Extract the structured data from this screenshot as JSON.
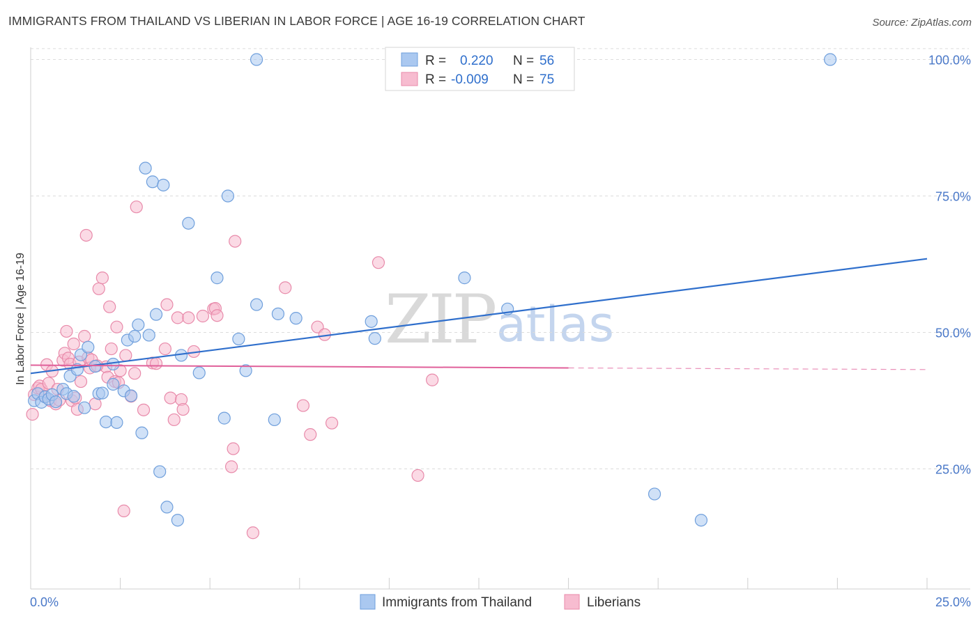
{
  "title": "IMMIGRANTS FROM THAILAND VS LIBERIAN IN LABOR FORCE | AGE 16-19 CORRELATION CHART",
  "source": "Source: ZipAtlas.com",
  "watermark": {
    "zip": "ZIP",
    "atlas": "atlas"
  },
  "colors": {
    "blue_fill": "#aac8f0",
    "blue_stroke": "#6f9fdc",
    "blue_line": "#2f6fcc",
    "pink_fill": "#f7bcd0",
    "pink_stroke": "#e88aaa",
    "pink_line": "#e0609a",
    "grid": "#dcdcdc",
    "tick_text": "#4a78c8"
  },
  "stats": {
    "r_label": "R =",
    "n_label": "N =",
    "thailand": {
      "r": "0.220",
      "n": "56"
    },
    "liberians": {
      "r": "-0.009",
      "n": "75"
    }
  },
  "chart_data": {
    "type": "scatter",
    "xlabel": "",
    "ylabel": "In Labor Force | Age 16-19",
    "xlim": [
      0,
      25
    ],
    "ylim": [
      3,
      103
    ],
    "x_tick_labels": [
      {
        "value": 0,
        "label": "0.0%"
      },
      {
        "value": 25,
        "label": "25.0%"
      }
    ],
    "y_tick_labels": [
      {
        "value": 25,
        "label": "25.0%"
      },
      {
        "value": 50,
        "label": "50.0%"
      },
      {
        "value": 75,
        "label": "75.0%"
      },
      {
        "value": 100,
        "label": "100.0%"
      }
    ],
    "grid": true,
    "legend_position": "bottom",
    "series": [
      {
        "name": "Immigrants from Thailand",
        "color": "blue",
        "trend": {
          "x": [
            0,
            25
          ],
          "y": [
            42.5,
            63.5
          ]
        },
        "points": [
          [
            0.1,
            37.5
          ],
          [
            0.2,
            38.8
          ],
          [
            0.3,
            37.2
          ],
          [
            0.4,
            38.2
          ],
          [
            0.5,
            37.8
          ],
          [
            0.6,
            38.6
          ],
          [
            0.7,
            37.3
          ],
          [
            0.9,
            39.6
          ],
          [
            1.0,
            38.8
          ],
          [
            1.1,
            42.0
          ],
          [
            1.2,
            38.3
          ],
          [
            1.3,
            43.2
          ],
          [
            1.4,
            45.9
          ],
          [
            1.5,
            36.2
          ],
          [
            1.6,
            47.3
          ],
          [
            1.8,
            43.8
          ],
          [
            1.9,
            38.8
          ],
          [
            2.0,
            38.9
          ],
          [
            2.1,
            33.6
          ],
          [
            2.3,
            40.5
          ],
          [
            2.3,
            44.2
          ],
          [
            2.4,
            33.5
          ],
          [
            2.6,
            39.3
          ],
          [
            2.7,
            48.6
          ],
          [
            2.8,
            38.4
          ],
          [
            2.9,
            49.3
          ],
          [
            3.0,
            51.4
          ],
          [
            3.1,
            31.6
          ],
          [
            3.2,
            80.1
          ],
          [
            3.3,
            49.5
          ],
          [
            3.4,
            77.6
          ],
          [
            3.5,
            53.3
          ],
          [
            3.6,
            24.5
          ],
          [
            3.7,
            77.0
          ],
          [
            3.8,
            18.0
          ],
          [
            4.1,
            15.6
          ],
          [
            4.2,
            45.8
          ],
          [
            4.4,
            70.0
          ],
          [
            4.7,
            42.6
          ],
          [
            5.2,
            60.0
          ],
          [
            5.4,
            34.3
          ],
          [
            5.5,
            75.0
          ],
          [
            5.8,
            48.8
          ],
          [
            6.0,
            43.0
          ],
          [
            6.3,
            55.1
          ],
          [
            6.3,
            100.0
          ],
          [
            6.8,
            34.0
          ],
          [
            6.9,
            53.4
          ],
          [
            7.4,
            52.6
          ],
          [
            9.5,
            52.0
          ],
          [
            9.6,
            48.9
          ],
          [
            12.1,
            60.0
          ],
          [
            13.3,
            54.3
          ],
          [
            17.4,
            20.4
          ],
          [
            18.7,
            15.6
          ],
          [
            22.3,
            100.0
          ]
        ]
      },
      {
        "name": "Liberians",
        "color": "pink",
        "trend": {
          "x": [
            0,
            15
          ],
          "y": [
            44.0,
            43.5
          ]
        },
        "trend_dashed": {
          "x": [
            15,
            25
          ],
          "y": [
            43.5,
            43.2
          ]
        },
        "points": [
          [
            0.05,
            35.0
          ],
          [
            0.1,
            38.6
          ],
          [
            0.2,
            39.8
          ],
          [
            0.25,
            40.2
          ],
          [
            0.3,
            39.6
          ],
          [
            0.4,
            38.3
          ],
          [
            0.45,
            44.1
          ],
          [
            0.5,
            40.7
          ],
          [
            0.55,
            37.5
          ],
          [
            0.6,
            42.9
          ],
          [
            0.7,
            36.9
          ],
          [
            0.75,
            39.6
          ],
          [
            0.8,
            37.6
          ],
          [
            0.9,
            44.9
          ],
          [
            0.95,
            46.2
          ],
          [
            1.0,
            50.2
          ],
          [
            1.05,
            45.3
          ],
          [
            1.1,
            44.2
          ],
          [
            1.15,
            37.5
          ],
          [
            1.2,
            47.9
          ],
          [
            1.25,
            38.0
          ],
          [
            1.3,
            35.9
          ],
          [
            1.35,
            44.6
          ],
          [
            1.4,
            41.0
          ],
          [
            1.5,
            49.3
          ],
          [
            1.55,
            67.8
          ],
          [
            1.6,
            45.4
          ],
          [
            1.65,
            43.5
          ],
          [
            1.7,
            45.0
          ],
          [
            1.8,
            36.9
          ],
          [
            1.9,
            58.0
          ],
          [
            2.0,
            60.0
          ],
          [
            2.1,
            43.7
          ],
          [
            2.15,
            41.8
          ],
          [
            2.2,
            54.7
          ],
          [
            2.25,
            47.0
          ],
          [
            2.35,
            41.0
          ],
          [
            2.4,
            51.0
          ],
          [
            2.5,
            43.0
          ],
          [
            2.6,
            17.3
          ],
          [
            2.65,
            45.8
          ],
          [
            2.8,
            38.3
          ],
          [
            2.9,
            42.5
          ],
          [
            2.95,
            73.0
          ],
          [
            3.15,
            35.8
          ],
          [
            3.4,
            44.4
          ],
          [
            3.5,
            44.3
          ],
          [
            3.75,
            47.0
          ],
          [
            3.8,
            55.1
          ],
          [
            3.9,
            38.0
          ],
          [
            4.0,
            34.0
          ],
          [
            4.1,
            52.7
          ],
          [
            4.2,
            37.7
          ],
          [
            4.25,
            35.9
          ],
          [
            4.4,
            52.7
          ],
          [
            4.55,
            46.5
          ],
          [
            4.8,
            53.0
          ],
          [
            5.1,
            54.3
          ],
          [
            5.15,
            54.4
          ],
          [
            5.2,
            53.1
          ],
          [
            5.6,
            25.4
          ],
          [
            5.65,
            28.7
          ],
          [
            5.7,
            66.7
          ],
          [
            6.2,
            13.3
          ],
          [
            7.1,
            58.2
          ],
          [
            7.6,
            36.6
          ],
          [
            7.8,
            31.3
          ],
          [
            8.0,
            51.0
          ],
          [
            8.2,
            49.6
          ],
          [
            8.4,
            33.4
          ],
          [
            9.7,
            62.8
          ],
          [
            10.8,
            23.8
          ],
          [
            11.2,
            41.3
          ],
          [
            2.45,
            40.8
          ],
          [
            1.85,
            43.9
          ]
        ]
      }
    ]
  }
}
